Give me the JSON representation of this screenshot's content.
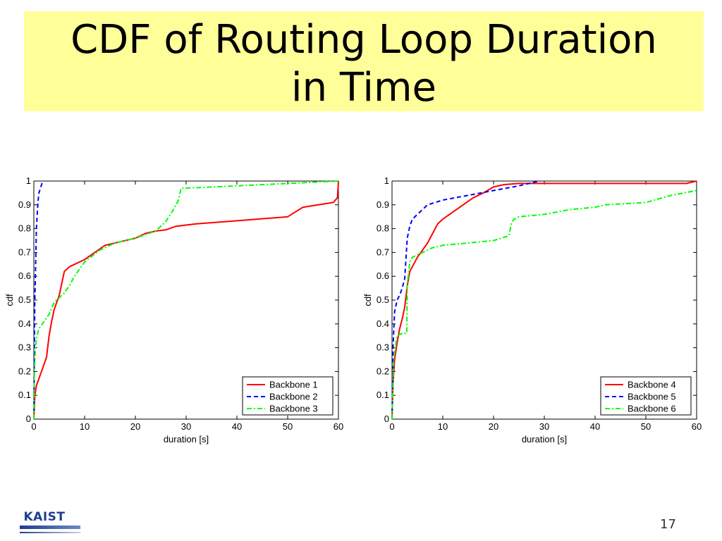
{
  "slide": {
    "title_line1": "CDF of Routing Loop Duration",
    "title_line2": "in Time",
    "logo_text": "KAIST",
    "page_number": "17"
  },
  "colors": {
    "title_background": "#ffff99",
    "red": "#ff0000",
    "blue": "#0000ff",
    "green": "#00ff00"
  },
  "chart_data": [
    {
      "type": "line",
      "xlabel": "duration [s]",
      "ylabel": "cdf",
      "xlim": [
        0,
        60
      ],
      "ylim": [
        0,
        1
      ],
      "xticks": [
        "0",
        "10",
        "20",
        "30",
        "40",
        "50",
        "60"
      ],
      "yticks": [
        "0",
        "0.1",
        "0.2",
        "0.3",
        "0.4",
        "0.5",
        "0.6",
        "0.7",
        "0.8",
        "0.9",
        "1"
      ],
      "legend": "bottom-right",
      "grid": false,
      "series": [
        {
          "name": "Backbone 1",
          "color": "#ff0000",
          "style": "solid",
          "x": [
            0,
            0.2,
            0.5,
            1,
            1.5,
            2,
            2.5,
            3,
            3.5,
            4,
            5,
            6,
            7,
            8,
            10,
            12,
            14,
            17,
            20,
            22,
            24,
            26,
            28,
            32,
            38,
            44,
            50,
            53,
            56,
            59,
            59.8,
            60
          ],
          "y": [
            0,
            0.1,
            0.14,
            0.17,
            0.2,
            0.23,
            0.26,
            0.35,
            0.41,
            0.46,
            0.52,
            0.62,
            0.64,
            0.65,
            0.67,
            0.7,
            0.73,
            0.745,
            0.76,
            0.78,
            0.79,
            0.795,
            0.81,
            0.82,
            0.83,
            0.84,
            0.85,
            0.89,
            0.9,
            0.91,
            0.93,
            1
          ]
        },
        {
          "name": "Backbone 2",
          "color": "#0000ff",
          "style": "dashed",
          "x": [
            0,
            0.1,
            0.2,
            0.3,
            0.5,
            0.8,
            1,
            1.3,
            1.6,
            2
          ],
          "y": [
            0,
            0.3,
            0.5,
            0.6,
            0.8,
            0.91,
            0.95,
            0.97,
            0.99,
            1
          ]
        },
        {
          "name": "Backbone 3",
          "color": "#00ff00",
          "style": "dashdot",
          "x": [
            0,
            0.1,
            0.3,
            0.6,
            1,
            2,
            3,
            4,
            5,
            6,
            7,
            8,
            10,
            13,
            16,
            20,
            24,
            26,
            27.5,
            28.5,
            29,
            30,
            40,
            50,
            60
          ],
          "y": [
            0,
            0.2,
            0.3,
            0.35,
            0.38,
            0.41,
            0.44,
            0.49,
            0.51,
            0.53,
            0.56,
            0.6,
            0.66,
            0.71,
            0.74,
            0.76,
            0.79,
            0.83,
            0.88,
            0.92,
            0.97,
            0.97,
            0.98,
            0.99,
            1
          ]
        }
      ]
    },
    {
      "type": "line",
      "xlabel": "duration [s]",
      "ylabel": "cdf",
      "xlim": [
        0,
        60
      ],
      "ylim": [
        0,
        1
      ],
      "xticks": [
        "0",
        "10",
        "20",
        "30",
        "40",
        "50",
        "60"
      ],
      "yticks": [
        "0",
        "0.1",
        "0.2",
        "0.3",
        "0.4",
        "0.5",
        "0.6",
        "0.7",
        "0.8",
        "0.9",
        "1"
      ],
      "legend": "bottom-right",
      "grid": false,
      "series": [
        {
          "name": "Backbone 4",
          "color": "#ff0000",
          "style": "solid",
          "x": [
            0,
            0.2,
            0.5,
            1,
            1.5,
            2,
            2.5,
            3,
            3.5,
            4,
            5,
            6,
            7,
            8,
            9,
            10,
            12,
            14,
            16,
            18,
            20,
            22,
            25,
            30,
            40,
            50,
            58,
            60
          ],
          "y": [
            0,
            0.15,
            0.25,
            0.32,
            0.38,
            0.42,
            0.47,
            0.56,
            0.62,
            0.64,
            0.68,
            0.71,
            0.74,
            0.78,
            0.82,
            0.84,
            0.87,
            0.9,
            0.93,
            0.95,
            0.975,
            0.985,
            0.99,
            0.99,
            0.99,
            0.99,
            0.99,
            1
          ]
        },
        {
          "name": "Backbone 5",
          "color": "#0000ff",
          "style": "dashed",
          "x": [
            0,
            0.2,
            0.5,
            1,
            1.5,
            2,
            2.5,
            3,
            3.5,
            4,
            5,
            7,
            10,
            15,
            20,
            25,
            29
          ],
          "y": [
            0,
            0.3,
            0.45,
            0.5,
            0.52,
            0.55,
            0.59,
            0.76,
            0.81,
            0.84,
            0.86,
            0.9,
            0.92,
            0.94,
            0.96,
            0.98,
            1
          ]
        },
        {
          "name": "Backbone 6",
          "color": "#00ff00",
          "style": "dashdot",
          "x": [
            0,
            0.3,
            1,
            2,
            2.9,
            3,
            3.5,
            4,
            5,
            6,
            8,
            10,
            15,
            20,
            23,
            23.5,
            24,
            25,
            30,
            35,
            40,
            42,
            50,
            55,
            60
          ],
          "y": [
            0,
            0.25,
            0.35,
            0.36,
            0.36,
            0.56,
            0.66,
            0.68,
            0.69,
            0.7,
            0.72,
            0.73,
            0.74,
            0.75,
            0.77,
            0.82,
            0.84,
            0.85,
            0.86,
            0.88,
            0.89,
            0.9,
            0.91,
            0.94,
            0.96
          ]
        }
      ]
    }
  ]
}
